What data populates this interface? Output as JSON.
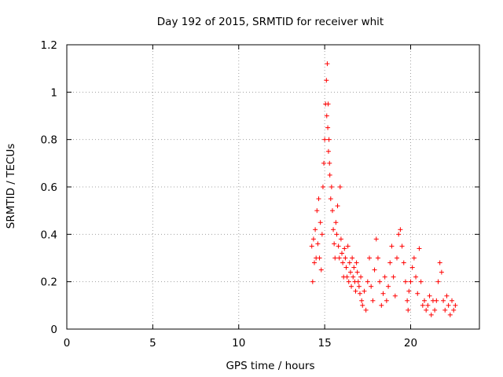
{
  "chart_data": {
    "type": "scatter",
    "title": "Day 192 of 2015, SRMTID for receiver whit",
    "xlabel": "GPS time / hours",
    "ylabel": "SRMTID / TECUs",
    "xlim": [
      0,
      24
    ],
    "ylim": [
      0,
      1.2
    ],
    "xticks": [
      0,
      5,
      10,
      15,
      20
    ],
    "yticks": [
      0,
      0.2,
      0.4,
      0.6,
      0.8,
      1,
      1.2
    ],
    "xtick_labels": [
      "0",
      "5",
      "10",
      "15",
      "20"
    ],
    "ytick_labels": [
      "0",
      "0.2",
      "0.4",
      "0.6",
      "0.8",
      "1",
      "1.2"
    ],
    "grid": true,
    "marker": "plus",
    "color": "#ff0000",
    "series": [
      {
        "name": "SRMTID",
        "x": [
          14.25,
          14.3,
          14.35,
          14.4,
          14.45,
          14.5,
          14.55,
          14.6,
          14.65,
          14.7,
          14.75,
          14.8,
          14.85,
          14.9,
          14.95,
          15.0,
          15.05,
          15.1,
          15.12,
          15.15,
          15.18,
          15.2,
          15.22,
          15.25,
          15.28,
          15.3,
          15.35,
          15.4,
          15.45,
          15.5,
          15.55,
          15.6,
          15.65,
          15.7,
          15.75,
          15.8,
          15.85,
          15.9,
          15.95,
          16.0,
          16.05,
          16.1,
          16.15,
          16.2,
          16.25,
          16.3,
          16.35,
          16.4,
          16.45,
          16.5,
          16.55,
          16.6,
          16.65,
          16.7,
          16.75,
          16.8,
          16.85,
          16.9,
          16.95,
          17.0,
          17.05,
          17.1,
          17.15,
          17.2,
          17.3,
          17.4,
          17.5,
          17.6,
          17.7,
          17.8,
          17.9,
          18.0,
          18.1,
          18.2,
          18.3,
          18.4,
          18.5,
          18.6,
          18.7,
          18.8,
          18.9,
          19.0,
          19.1,
          19.2,
          19.3,
          19.4,
          19.5,
          19.6,
          19.7,
          19.8,
          19.85,
          19.9,
          20.0,
          20.1,
          20.2,
          20.3,
          20.4,
          20.5,
          20.6,
          20.7,
          20.8,
          20.9,
          21.0,
          21.1,
          21.2,
          21.3,
          21.4,
          21.5,
          21.6,
          21.7,
          21.8,
          21.9,
          22.0,
          22.1,
          22.2,
          22.3,
          22.4,
          22.5,
          22.6
        ],
        "y": [
          0.35,
          0.2,
          0.38,
          0.28,
          0.42,
          0.3,
          0.5,
          0.36,
          0.55,
          0.3,
          0.45,
          0.25,
          0.4,
          0.6,
          0.7,
          0.8,
          0.95,
          1.05,
          0.9,
          1.12,
          0.85,
          0.95,
          0.75,
          0.8,
          0.7,
          0.65,
          0.55,
          0.6,
          0.5,
          0.42,
          0.36,
          0.3,
          0.45,
          0.4,
          0.52,
          0.35,
          0.3,
          0.6,
          0.38,
          0.32,
          0.28,
          0.22,
          0.34,
          0.3,
          0.26,
          0.22,
          0.35,
          0.2,
          0.28,
          0.24,
          0.18,
          0.3,
          0.22,
          0.26,
          0.2,
          0.16,
          0.28,
          0.24,
          0.2,
          0.18,
          0.15,
          0.22,
          0.12,
          0.1,
          0.16,
          0.08,
          0.2,
          0.3,
          0.18,
          0.12,
          0.25,
          0.38,
          0.3,
          0.2,
          0.1,
          0.15,
          0.22,
          0.12,
          0.18,
          0.28,
          0.35,
          0.22,
          0.14,
          0.3,
          0.4,
          0.42,
          0.35,
          0.28,
          0.2,
          0.12,
          0.08,
          0.16,
          0.2,
          0.26,
          0.3,
          0.22,
          0.15,
          0.34,
          0.2,
          0.1,
          0.12,
          0.08,
          0.1,
          0.14,
          0.06,
          0.12,
          0.08,
          0.12,
          0.2,
          0.28,
          0.24,
          0.12,
          0.08,
          0.14,
          0.1,
          0.06,
          0.12,
          0.08,
          0.1
        ]
      }
    ]
  }
}
